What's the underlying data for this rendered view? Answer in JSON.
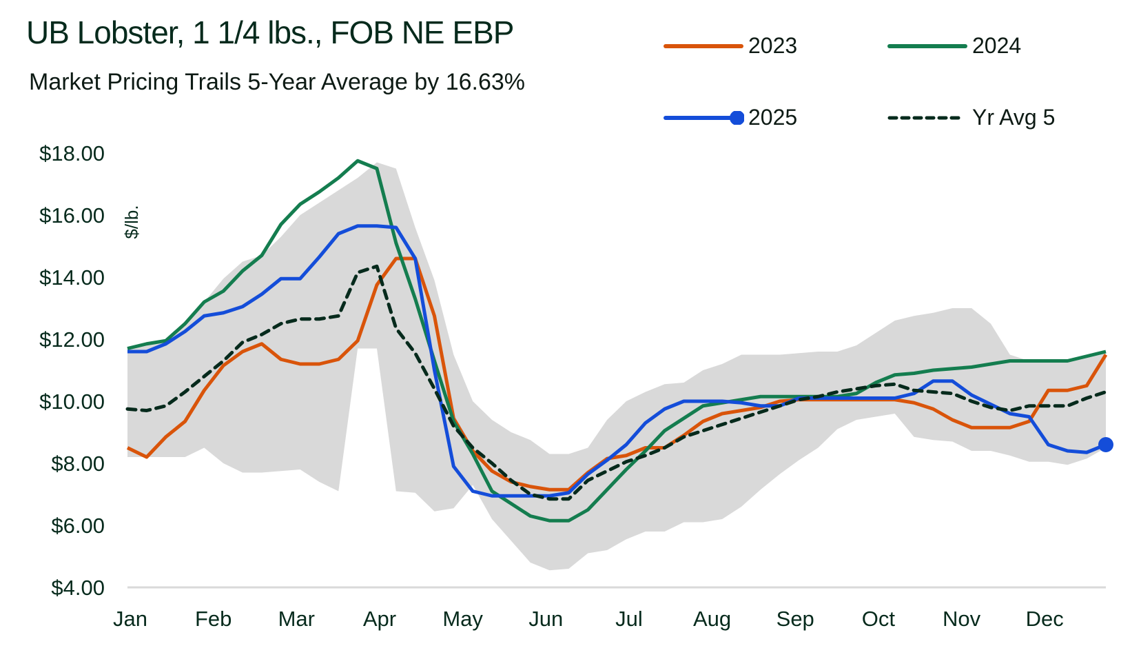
{
  "header": {
    "title": "UB Lobster, 1 1/4 lbs., FOB NE EBP",
    "subtitle": "Market Pricing Trails 5-Year Average by 16.63%"
  },
  "legend": {
    "placement": "top-right",
    "items": [
      {
        "label": "2023",
        "color": "#d9540a",
        "style": "solid",
        "marker": false
      },
      {
        "label": "2024",
        "color": "#147d4f",
        "style": "solid",
        "marker": false
      },
      {
        "label": "2025",
        "color": "#144dd9",
        "style": "solid",
        "marker": true
      },
      {
        "label": "Yr Avg 5",
        "color": "#062a1c",
        "style": "dashed",
        "marker": false
      }
    ]
  },
  "chart_data": {
    "type": "line",
    "title": "UB Lobster, 1 1/4 lbs., FOB NE EBP",
    "subtitle": "Market Pricing Trails 5-Year Average by 16.63%",
    "xlabel": "",
    "ylabel": "$/lb.",
    "ylim": [
      4,
      18
    ],
    "yticks": [
      4,
      6,
      8,
      10,
      12,
      14,
      16,
      18
    ],
    "ytick_labels": [
      "$4.00",
      "$6.00",
      "$8.00",
      "$10.00",
      "$12.00",
      "$14.00",
      "$16.00",
      "$18.00"
    ],
    "x_unit": "week",
    "x_count": 52,
    "month_labels": [
      "Jan",
      "Feb",
      "Mar",
      "Apr",
      "May",
      "Jun",
      "Jul",
      "Aug",
      "Sep",
      "Oct",
      "Nov",
      "Dec"
    ],
    "grid": false,
    "band": {
      "name": "5-year range",
      "color": "#d9d9d9",
      "upper": [
        11.7,
        11.85,
        11.95,
        12.5,
        13.2,
        13.95,
        14.5,
        14.7,
        15.3,
        16.0,
        16.4,
        16.8,
        17.2,
        17.7,
        17.5,
        15.6,
        13.9,
        11.5,
        10.0,
        9.4,
        9.0,
        8.75,
        8.3,
        8.3,
        8.5,
        9.4,
        10.0,
        10.3,
        10.55,
        10.6,
        11.0,
        11.2,
        11.5,
        11.5,
        11.5,
        11.55,
        11.6,
        11.6,
        11.8,
        12.2,
        12.6,
        12.75,
        12.85,
        13.0,
        13.0,
        12.5,
        11.5,
        11.3,
        11.3,
        11.3,
        11.5,
        11.6
      ],
      "lower": [
        8.2,
        8.2,
        8.2,
        8.2,
        8.5,
        8.0,
        7.7,
        7.7,
        7.75,
        7.8,
        7.4,
        7.1,
        11.7,
        11.7,
        7.1,
        7.05,
        6.45,
        6.55,
        7.3,
        6.2,
        5.5,
        4.8,
        4.55,
        4.6,
        5.1,
        5.2,
        5.55,
        5.8,
        5.8,
        6.1,
        6.1,
        6.2,
        6.6,
        7.15,
        7.65,
        8.1,
        8.5,
        9.1,
        9.4,
        9.5,
        9.6,
        8.85,
        8.75,
        8.7,
        8.4,
        8.4,
        8.25,
        8.05,
        8.05,
        7.95,
        8.15,
        8.5
      ]
    },
    "series": [
      {
        "name": "2023",
        "color": "#d9540a",
        "values": [
          8.5,
          8.2,
          8.85,
          9.35,
          10.35,
          11.15,
          11.6,
          11.85,
          11.35,
          11.2,
          11.2,
          11.35,
          11.95,
          13.75,
          14.6,
          14.6,
          12.75,
          9.45,
          8.4,
          7.75,
          7.4,
          7.25,
          7.15,
          7.15,
          7.7,
          8.15,
          8.25,
          8.5,
          8.5,
          8.9,
          9.35,
          9.6,
          9.7,
          9.8,
          10.0,
          10.05,
          10.05,
          10.05,
          10.05,
          10.05,
          10.05,
          9.95,
          9.75,
          9.4,
          9.15,
          9.15,
          9.15,
          9.35,
          10.35,
          10.35,
          10.5,
          11.5
        ]
      },
      {
        "name": "2024",
        "color": "#147d4f",
        "values": [
          11.7,
          11.85,
          11.95,
          12.5,
          13.2,
          13.55,
          14.2,
          14.7,
          15.7,
          16.35,
          16.75,
          17.2,
          17.75,
          17.5,
          15.1,
          13.3,
          11.3,
          9.35,
          8.3,
          7.1,
          6.7,
          6.3,
          6.15,
          6.15,
          6.5,
          7.15,
          7.8,
          8.4,
          9.05,
          9.45,
          9.85,
          9.95,
          10.05,
          10.15,
          10.15,
          10.15,
          10.15,
          10.15,
          10.25,
          10.6,
          10.85,
          10.9,
          11.0,
          11.05,
          11.1,
          11.2,
          11.3,
          11.3,
          11.3,
          11.3,
          11.45,
          11.6
        ]
      },
      {
        "name": "2025",
        "color": "#144dd9",
        "values": [
          11.6,
          11.6,
          11.85,
          12.25,
          12.75,
          12.85,
          13.05,
          13.45,
          13.95,
          13.95,
          14.65,
          15.4,
          15.65,
          15.65,
          15.6,
          14.6,
          11.0,
          7.9,
          7.1,
          6.95,
          6.95,
          6.95,
          6.95,
          7.05,
          7.65,
          8.1,
          8.6,
          9.3,
          9.75,
          10.0,
          10.0,
          10.0,
          9.95,
          9.85,
          9.85,
          10.1,
          10.1,
          10.1,
          10.1,
          10.1,
          10.1,
          10.25,
          10.65,
          10.65,
          10.2,
          9.9,
          9.6,
          9.5,
          8.6,
          8.4,
          8.35,
          8.6
        ],
        "end_marker": true
      },
      {
        "name": "Yr Avg 5",
        "color": "#062a1c",
        "dashed": true,
        "values": [
          9.75,
          9.7,
          9.85,
          10.3,
          10.8,
          11.3,
          11.9,
          12.15,
          12.5,
          12.65,
          12.65,
          12.75,
          14.15,
          14.35,
          12.35,
          11.55,
          10.4,
          9.2,
          8.5,
          8.0,
          7.45,
          7.0,
          6.85,
          6.85,
          7.45,
          7.75,
          8.05,
          8.25,
          8.5,
          8.85,
          9.05,
          9.25,
          9.45,
          9.65,
          9.85,
          10.05,
          10.15,
          10.3,
          10.4,
          10.5,
          10.55,
          10.35,
          10.3,
          10.25,
          10.0,
          9.8,
          9.7,
          9.85,
          9.85,
          9.85,
          10.1,
          10.3
        ]
      }
    ]
  }
}
